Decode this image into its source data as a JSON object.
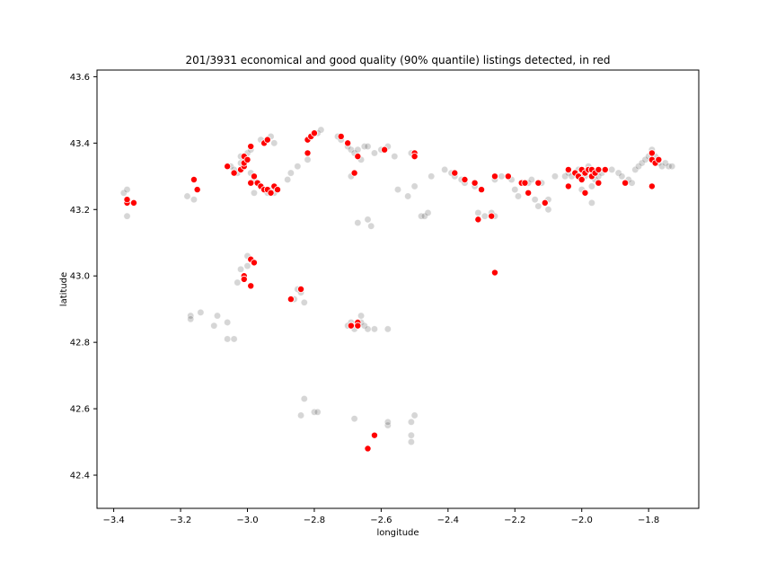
{
  "chart_data": {
    "type": "scatter",
    "title": "201/3931 economical and good quality (90% quantile) listings detected, in red",
    "xlabel": "longitude",
    "ylabel": "latitude",
    "xlim": [
      -3.45,
      -1.65
    ],
    "ylim": [
      42.3,
      43.62
    ],
    "xticks": [
      -3.4,
      -3.2,
      -3.0,
      -2.8,
      -2.6,
      -2.4,
      -2.2,
      -2.0,
      -1.8
    ],
    "xtick_labels": [
      "−3.4",
      "−3.2",
      "−3.0",
      "−2.8",
      "−2.6",
      "−2.4",
      "−2.2",
      "−2.0",
      "−1.8"
    ],
    "yticks": [
      42.4,
      42.6,
      42.8,
      43.0,
      43.2,
      43.4,
      43.6
    ],
    "ytick_labels": [
      "42.4",
      "42.6",
      "42.8",
      "43.0",
      "43.2",
      "43.4",
      "43.6"
    ],
    "grid": false,
    "colors": {
      "all_listings": "#000000",
      "detected": "#ff0000",
      "detected_edge": "#ffffff"
    },
    "series": [
      {
        "style": "gray-translucent",
        "points": [
          [
            -3.37,
            43.25
          ],
          [
            -3.36,
            43.26
          ],
          [
            -3.36,
            43.18
          ],
          [
            -3.18,
            43.24
          ],
          [
            -3.15,
            43.26
          ],
          [
            -3.16,
            43.23
          ],
          [
            -3.05,
            43.33
          ],
          [
            -3.04,
            43.32
          ],
          [
            -3.03,
            43.31
          ],
          [
            -3.02,
            43.34
          ],
          [
            -3.02,
            43.36
          ],
          [
            -3.01,
            43.35
          ],
          [
            -3.0,
            43.37
          ],
          [
            -2.99,
            43.38
          ],
          [
            -2.99,
            43.31
          ],
          [
            -2.98,
            43.29
          ],
          [
            -2.97,
            43.28
          ],
          [
            -2.96,
            43.27
          ],
          [
            -2.95,
            43.26
          ],
          [
            -2.94,
            43.25
          ],
          [
            -2.93,
            43.26
          ],
          [
            -2.92,
            43.25
          ],
          [
            -2.92,
            43.27
          ],
          [
            -2.91,
            43.26
          ],
          [
            -2.98,
            43.25
          ],
          [
            -2.96,
            43.41
          ],
          [
            -2.93,
            43.42
          ],
          [
            -2.92,
            43.4
          ],
          [
            -2.88,
            43.29
          ],
          [
            -2.87,
            43.31
          ],
          [
            -2.85,
            43.33
          ],
          [
            -2.82,
            43.35
          ],
          [
            -2.81,
            43.42
          ],
          [
            -2.79,
            43.43
          ],
          [
            -2.78,
            43.44
          ],
          [
            -2.73,
            43.42
          ],
          [
            -2.72,
            43.41
          ],
          [
            -2.7,
            43.39
          ],
          [
            -2.69,
            43.38
          ],
          [
            -2.68,
            43.37
          ],
          [
            -2.67,
            43.38
          ],
          [
            -2.65,
            43.39
          ],
          [
            -2.64,
            43.39
          ],
          [
            -2.62,
            43.37
          ],
          [
            -2.6,
            43.38
          ],
          [
            -2.58,
            43.39
          ],
          [
            -2.56,
            43.36
          ],
          [
            -2.51,
            43.37
          ],
          [
            -2.5,
            43.36
          ],
          [
            -2.69,
            43.3
          ],
          [
            -2.66,
            43.35
          ],
          [
            -2.67,
            43.16
          ],
          [
            -2.64,
            43.17
          ],
          [
            -2.63,
            43.15
          ],
          [
            -2.55,
            43.26
          ],
          [
            -2.52,
            43.24
          ],
          [
            -2.5,
            43.27
          ],
          [
            -2.48,
            43.18
          ],
          [
            -2.47,
            43.18
          ],
          [
            -2.46,
            43.19
          ],
          [
            -2.45,
            43.3
          ],
          [
            -2.41,
            43.32
          ],
          [
            -2.39,
            43.31
          ],
          [
            -2.38,
            43.3
          ],
          [
            -2.36,
            43.29
          ],
          [
            -2.35,
            43.28
          ],
          [
            -2.32,
            43.27
          ],
          [
            -2.31,
            43.19
          ],
          [
            -2.29,
            43.18
          ],
          [
            -2.27,
            43.19
          ],
          [
            -2.26,
            43.18
          ],
          [
            -2.26,
            43.29
          ],
          [
            -2.24,
            43.3
          ],
          [
            -2.22,
            43.3
          ],
          [
            -2.21,
            43.29
          ],
          [
            -2.2,
            43.26
          ],
          [
            -2.19,
            43.24
          ],
          [
            -2.17,
            43.28
          ],
          [
            -2.16,
            43.28
          ],
          [
            -2.15,
            43.29
          ],
          [
            -2.14,
            43.23
          ],
          [
            -2.13,
            43.21
          ],
          [
            -2.12,
            43.28
          ],
          [
            -2.1,
            43.2
          ],
          [
            -2.1,
            43.23
          ],
          [
            -2.08,
            43.3
          ],
          [
            -2.05,
            43.3
          ],
          [
            -2.04,
            43.31
          ],
          [
            -2.03,
            43.3
          ],
          [
            -2.02,
            43.31
          ],
          [
            -2.01,
            43.32
          ],
          [
            -2.0,
            43.31
          ],
          [
            -1.99,
            43.3
          ],
          [
            -1.98,
            43.33
          ],
          [
            -1.97,
            43.27
          ],
          [
            -1.96,
            43.29
          ],
          [
            -1.95,
            43.3
          ],
          [
            -1.94,
            43.31
          ],
          [
            -1.93,
            43.32
          ],
          [
            -1.91,
            43.32
          ],
          [
            -1.89,
            43.31
          ],
          [
            -1.88,
            43.3
          ],
          [
            -1.86,
            43.29
          ],
          [
            -1.84,
            43.32
          ],
          [
            -1.83,
            43.33
          ],
          [
            -1.82,
            43.34
          ],
          [
            -1.81,
            43.35
          ],
          [
            -1.8,
            43.36
          ],
          [
            -1.79,
            43.37
          ],
          [
            -1.79,
            43.38
          ],
          [
            -1.78,
            43.36
          ],
          [
            -1.77,
            43.34
          ],
          [
            -1.76,
            43.33
          ],
          [
            -1.75,
            43.34
          ],
          [
            -1.74,
            43.33
          ],
          [
            -1.73,
            43.33
          ],
          [
            -1.85,
            43.28
          ],
          [
            -1.97,
            43.22
          ],
          [
            -2.0,
            43.26
          ],
          [
            -3.0,
            43.06
          ],
          [
            -3.0,
            43.03
          ],
          [
            -3.02,
            43.02
          ],
          [
            -3.01,
            43.0
          ],
          [
            -3.03,
            42.98
          ],
          [
            -2.99,
            42.97
          ],
          [
            -3.17,
            42.88
          ],
          [
            -3.17,
            42.87
          ],
          [
            -3.14,
            42.89
          ],
          [
            -3.09,
            42.88
          ],
          [
            -3.1,
            42.85
          ],
          [
            -3.06,
            42.86
          ],
          [
            -3.06,
            42.81
          ],
          [
            -3.04,
            42.81
          ],
          [
            -2.86,
            42.93
          ],
          [
            -2.85,
            42.96
          ],
          [
            -2.84,
            42.95
          ],
          [
            -2.83,
            42.92
          ],
          [
            -2.7,
            42.85
          ],
          [
            -2.69,
            42.86
          ],
          [
            -2.68,
            42.84
          ],
          [
            -2.67,
            42.85
          ],
          [
            -2.66,
            42.86
          ],
          [
            -2.65,
            42.85
          ],
          [
            -2.64,
            42.84
          ],
          [
            -2.66,
            42.88
          ],
          [
            -2.62,
            42.84
          ],
          [
            -2.58,
            42.84
          ],
          [
            -2.83,
            42.63
          ],
          [
            -2.84,
            42.58
          ],
          [
            -2.8,
            42.59
          ],
          [
            -2.79,
            42.59
          ],
          [
            -2.68,
            42.57
          ],
          [
            -2.58,
            42.55
          ],
          [
            -2.58,
            42.56
          ],
          [
            -2.51,
            42.56
          ],
          [
            -2.5,
            42.58
          ],
          [
            -2.51,
            42.52
          ],
          [
            -2.51,
            42.5
          ]
        ]
      },
      {
        "style": "red-detected",
        "points": [
          [
            -3.36,
            43.22
          ],
          [
            -3.36,
            43.23
          ],
          [
            -3.34,
            43.22
          ],
          [
            -3.16,
            43.29
          ],
          [
            -3.15,
            43.26
          ],
          [
            -3.06,
            43.33
          ],
          [
            -3.04,
            43.31
          ],
          [
            -3.02,
            43.32
          ],
          [
            -3.01,
            43.33
          ],
          [
            -3.01,
            43.34
          ],
          [
            -3.01,
            43.36
          ],
          [
            -3.0,
            43.35
          ],
          [
            -2.99,
            43.39
          ],
          [
            -2.98,
            43.3
          ],
          [
            -2.99,
            43.28
          ],
          [
            -2.97,
            43.28
          ],
          [
            -2.96,
            43.27
          ],
          [
            -2.95,
            43.26
          ],
          [
            -2.94,
            43.26
          ],
          [
            -2.93,
            43.25
          ],
          [
            -2.92,
            43.27
          ],
          [
            -2.91,
            43.26
          ],
          [
            -2.95,
            43.4
          ],
          [
            -2.94,
            43.41
          ],
          [
            -2.82,
            43.37
          ],
          [
            -2.82,
            43.41
          ],
          [
            -2.81,
            43.42
          ],
          [
            -2.8,
            43.43
          ],
          [
            -2.72,
            43.42
          ],
          [
            -2.7,
            43.4
          ],
          [
            -2.68,
            43.31
          ],
          [
            -2.67,
            43.36
          ],
          [
            -2.59,
            43.38
          ],
          [
            -2.5,
            43.37
          ],
          [
            -2.5,
            43.36
          ],
          [
            -2.38,
            43.31
          ],
          [
            -2.35,
            43.29
          ],
          [
            -2.32,
            43.28
          ],
          [
            -2.3,
            43.26
          ],
          [
            -2.31,
            43.17
          ],
          [
            -2.27,
            43.18
          ],
          [
            -2.26,
            43.3
          ],
          [
            -2.22,
            43.3
          ],
          [
            -2.18,
            43.28
          ],
          [
            -2.17,
            43.28
          ],
          [
            -2.16,
            43.25
          ],
          [
            -2.13,
            43.28
          ],
          [
            -2.11,
            43.22
          ],
          [
            -2.04,
            43.32
          ],
          [
            -2.04,
            43.27
          ],
          [
            -2.02,
            43.31
          ],
          [
            -2.01,
            43.3
          ],
          [
            -2.0,
            43.29
          ],
          [
            -2.0,
            43.32
          ],
          [
            -1.99,
            43.31
          ],
          [
            -1.99,
            43.25
          ],
          [
            -1.98,
            43.32
          ],
          [
            -1.97,
            43.32
          ],
          [
            -1.97,
            43.3
          ],
          [
            -1.96,
            43.31
          ],
          [
            -1.95,
            43.32
          ],
          [
            -1.95,
            43.28
          ],
          [
            -1.93,
            43.32
          ],
          [
            -1.87,
            43.28
          ],
          [
            -1.79,
            43.27
          ],
          [
            -1.79,
            43.37
          ],
          [
            -1.79,
            43.35
          ],
          [
            -1.78,
            43.34
          ],
          [
            -1.77,
            43.35
          ],
          [
            -2.99,
            43.05
          ],
          [
            -2.98,
            43.04
          ],
          [
            -3.01,
            43.0
          ],
          [
            -3.01,
            42.99
          ],
          [
            -2.99,
            42.97
          ],
          [
            -2.87,
            42.93
          ],
          [
            -2.84,
            42.96
          ],
          [
            -2.69,
            42.85
          ],
          [
            -2.67,
            42.86
          ],
          [
            -2.67,
            42.85
          ],
          [
            -2.26,
            43.01
          ],
          [
            -2.62,
            42.52
          ],
          [
            -2.64,
            42.48
          ]
        ]
      }
    ]
  }
}
